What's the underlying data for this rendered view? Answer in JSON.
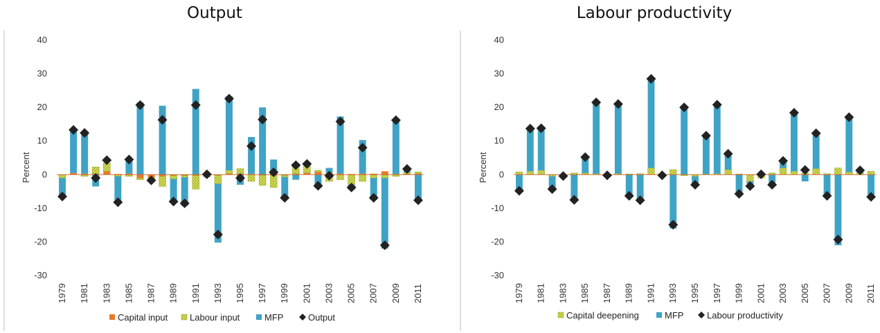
{
  "charts": [
    {
      "title": "Output",
      "chart_data": {
        "type": "bar",
        "stacked": true,
        "title": "Output",
        "ylabel": "Percent",
        "ylim": [
          -30,
          40
        ],
        "yticks": [
          -30,
          -20,
          -10,
          0,
          10,
          20,
          30,
          40
        ],
        "x": [
          1979,
          1980,
          1981,
          1982,
          1983,
          1984,
          1985,
          1986,
          1987,
          1988,
          1989,
          1990,
          1991,
          1992,
          1993,
          1994,
          1995,
          1996,
          1997,
          1998,
          1999,
          2000,
          2001,
          2002,
          2003,
          2004,
          2005,
          2006,
          2007,
          2008,
          2009,
          2010,
          2011
        ],
        "x_tick_labels": [
          "1979",
          "1981",
          "1983",
          "1985",
          "1987",
          "1989",
          "1991",
          "1993",
          "1995",
          "1997",
          "1999",
          "2001",
          "2003",
          "2005",
          "2007",
          "2009",
          "2011"
        ],
        "series": [
          {
            "name": "Capital input",
            "kind": "bar",
            "color": "#e8782a",
            "values": [
              0,
              0.5,
              0.3,
              0.3,
              1,
              0.2,
              0.3,
              -1,
              -0.8,
              -0.5,
              -0.3,
              -0.3,
              -0.3,
              -0.2,
              -0.2,
              0.3,
              0.3,
              0.2,
              -0.2,
              -0.3,
              -0.2,
              0.3,
              0.5,
              0.8,
              0.5,
              0.3,
              0.2,
              0.3,
              0.3,
              1,
              0.2,
              0.2,
              0.3
            ]
          },
          {
            "name": "Labour input",
            "kind": "bar",
            "color": "#d6df5a",
            "values": [
              -1,
              0,
              -0.5,
              2,
              2.5,
              -0.5,
              -0.5,
              -0.5,
              -0.8,
              -3,
              -1,
              -0.5,
              -4,
              -0.5,
              -2.5,
              1,
              1.5,
              -2,
              -3,
              -3.5,
              -0.5,
              3,
              2.5,
              0.5,
              -2,
              -1.5,
              -3,
              -2,
              -1,
              -1,
              -0.5,
              0.5,
              0.5
            ]
          },
          {
            "name": "MFP",
            "kind": "bar",
            "color": "#3fa3c6",
            "values": [
              -5.5,
              13,
              12.5,
              -3.5,
              0,
              -7.5,
              4,
              21.5,
              -0.5,
              20.5,
              -7,
              -8.5,
              25.5,
              0.5,
              -17.5,
              22,
              -3,
              11,
              20,
              4.5,
              -6.5,
              -1.5,
              0.5,
              -4,
              1.5,
              17,
              -1.5,
              10,
              -6.5,
              -21,
              16,
              1.5,
              -7.5
            ]
          },
          {
            "name": "Output",
            "kind": "marker",
            "color": "#222222",
            "values": [
              -6.5,
              13.3,
              12.4,
              -1,
              4.3,
              -8.2,
              4.5,
              20.7,
              -1.7,
              16.3,
              -8,
              -8.5,
              20.7,
              0.1,
              -17.8,
              22.6,
              -1,
              8.5,
              16.4,
              0.7,
              -6.9,
              2.8,
              3.2,
              -3.3,
              -0.3,
              15.8,
              -3.8,
              8,
              -6.9,
              -21,
              16.2,
              1.7,
              -7.6
            ]
          }
        ],
        "legend": [
          "Capital input",
          "Labour input",
          "MFP",
          "Output"
        ],
        "legend_position": "bottom"
      }
    },
    {
      "title": "Labour productivity",
      "chart_data": {
        "type": "bar",
        "stacked": true,
        "title": "Labour productivity",
        "ylabel": "Percent",
        "ylim": [
          -30,
          40
        ],
        "yticks": [
          -30,
          -20,
          -10,
          0,
          10,
          20,
          30,
          40
        ],
        "x": [
          1979,
          1980,
          1981,
          1982,
          1983,
          1984,
          1985,
          1986,
          1987,
          1988,
          1989,
          1990,
          1991,
          1992,
          1993,
          1994,
          1995,
          1996,
          1997,
          1998,
          1999,
          2000,
          2001,
          2002,
          2003,
          2004,
          2005,
          2006,
          2007,
          2008,
          2009,
          2010,
          2011
        ],
        "x_tick_labels": [
          "1979",
          "1981",
          "1983",
          "1985",
          "1987",
          "1989",
          "1991",
          "1993",
          "1995",
          "1997",
          "1999",
          "2001",
          "2003",
          "2005",
          "2007",
          "2009",
          "2011"
        ],
        "series": [
          {
            "name": "Capital deepening",
            "kind": "bar",
            "color": "#d6df5a",
            "values": [
              0.8,
              1,
              1.3,
              -0.5,
              -0.5,
              0.5,
              0.5,
              0.3,
              0.2,
              0.3,
              0.2,
              0.3,
              2,
              0.3,
              1.5,
              -0.3,
              -0.5,
              0.2,
              0.3,
              1.5,
              0.2,
              -2,
              -1,
              0.5,
              2,
              1,
              0.5,
              1.8,
              0.3,
              2,
              0.8,
              0.5,
              1
            ]
          },
          {
            "name": "MFP",
            "kind": "bar",
            "color": "#3fa3c6",
            "values": [
              -5,
              13,
              13,
              -4,
              -0.5,
              -7.5,
              5,
              21.5,
              -0.5,
              21,
              -6.5,
              -7.5,
              27,
              0,
              -16,
              20.5,
              -3,
              11.5,
              20.5,
              5,
              -6,
              -2,
              0.5,
              -3.5,
              2,
              17.5,
              -2,
              10.5,
              -6.5,
              -21,
              16.5,
              0.5,
              -7
            ]
          },
          {
            "name": "Labour productivity",
            "kind": "marker",
            "color": "#222222",
            "values": [
              -4.8,
              13.7,
              13.8,
              -4.3,
              -0.4,
              -7.5,
              5.2,
              21.5,
              -0.2,
              21,
              -6.3,
              -7.6,
              28.5,
              -0.2,
              -14.9,
              20,
              -3,
              11.6,
              20.8,
              6.2,
              -5.7,
              -3.4,
              0.1,
              -3,
              4.1,
              18.4,
              1.4,
              12.3,
              -6.3,
              -19.3,
              17.1,
              1.3,
              -6.6
            ]
          }
        ],
        "legend": [
          "Capital deepening",
          "MFP",
          "Labour productivity"
        ],
        "legend_position": "bottom"
      }
    }
  ]
}
